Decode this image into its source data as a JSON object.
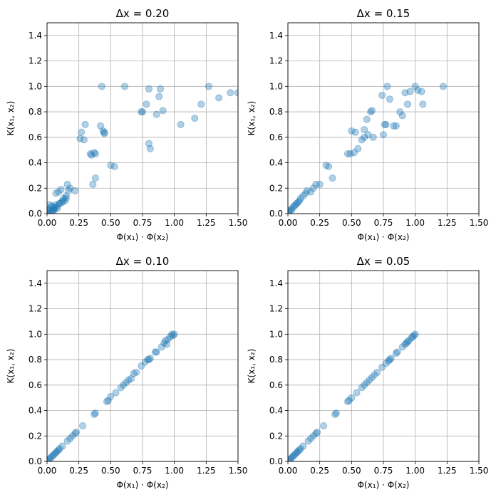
{
  "chart_data": [
    {
      "type": "scatter",
      "title": "Δx = 0.20",
      "xlabel": "Φ(x₁) · Φ(x₂)",
      "ylabel": "K(x₁, x₂)",
      "xlim": [
        0,
        1.5
      ],
      "ylim": [
        0,
        1.5
      ],
      "xticks": [
        "0.00",
        "0.25",
        "0.50",
        "0.75",
        "1.00",
        "1.25",
        "1.50"
      ],
      "yticks": [
        "0.0",
        "0.2",
        "0.4",
        "0.6",
        "0.8",
        "1.0",
        "1.2",
        "1.4"
      ],
      "grid": true,
      "color": "#1f77b4",
      "x": [
        0.0,
        0.01,
        0.02,
        0.03,
        0.04,
        0.05,
        0.06,
        0.07,
        0.08,
        0.1,
        0.12,
        0.14,
        0.02,
        0.04,
        0.06,
        0.08,
        0.1,
        0.12,
        0.15,
        0.17,
        0.18,
        0.16,
        0.22,
        0.09,
        0.11,
        0.07,
        0.13,
        0.03,
        0.05,
        0.15,
        0.26,
        0.27,
        0.3,
        0.29,
        0.34,
        0.37,
        0.38,
        0.38,
        0.36,
        0.35,
        0.42,
        0.44,
        0.45,
        0.45,
        0.5,
        0.53,
        0.43,
        0.61,
        0.74,
        0.75,
        0.8,
        0.8,
        0.81,
        0.86,
        0.88,
        0.89,
        0.91,
        0.78,
        1.05,
        1.16,
        1.21,
        1.27,
        1.35,
        1.44,
        1.5
      ],
      "y": [
        0.01,
        0.02,
        0.03,
        0.05,
        0.06,
        0.03,
        0.05,
        0.07,
        0.04,
        0.08,
        0.09,
        0.1,
        0.07,
        0.02,
        0.04,
        0.06,
        0.08,
        0.1,
        0.12,
        0.18,
        0.2,
        0.23,
        0.18,
        0.17,
        0.19,
        0.16,
        0.12,
        0.01,
        0.02,
        0.14,
        0.59,
        0.64,
        0.7,
        0.58,
        0.47,
        0.48,
        0.47,
        0.28,
        0.23,
        0.46,
        0.69,
        0.65,
        0.64,
        0.63,
        0.38,
        0.37,
        1.0,
        1.0,
        0.8,
        0.8,
        0.98,
        0.55,
        0.51,
        0.78,
        0.92,
        0.98,
        0.81,
        0.86,
        0.7,
        0.75,
        0.86,
        1.0,
        0.91,
        0.95,
        0.95
      ]
    },
    {
      "type": "scatter",
      "title": "Δx = 0.15",
      "xlabel": "Φ(x₁) · Φ(x₂)",
      "ylabel": "K(x₁, x₂)",
      "xlim": [
        0,
        1.5
      ],
      "ylim": [
        0,
        1.5
      ],
      "xticks": [
        "0.00",
        "0.25",
        "0.50",
        "0.75",
        "1.00",
        "1.25",
        "1.50"
      ],
      "yticks": [
        "0.0",
        "0.2",
        "0.4",
        "0.6",
        "0.8",
        "1.0",
        "1.2",
        "1.4"
      ],
      "grid": true,
      "color": "#1f77b4",
      "x": [
        0.0,
        0.01,
        0.02,
        0.03,
        0.04,
        0.05,
        0.06,
        0.07,
        0.08,
        0.09,
        0.1,
        0.12,
        0.14,
        0.15,
        0.18,
        0.2,
        0.22,
        0.25,
        0.3,
        0.32,
        0.35,
        0.47,
        0.49,
        0.5,
        0.52,
        0.53,
        0.55,
        0.58,
        0.6,
        0.62,
        0.63,
        0.65,
        0.66,
        0.67,
        0.74,
        0.75,
        0.77,
        0.78,
        0.8,
        0.83,
        0.85,
        0.88,
        0.9,
        0.92,
        0.94,
        0.96,
        1.0,
        1.02,
        1.05,
        1.06,
        1.22,
        0.76,
        0.6
      ],
      "y": [
        0.01,
        0.02,
        0.03,
        0.03,
        0.05,
        0.06,
        0.07,
        0.08,
        0.09,
        0.1,
        0.12,
        0.14,
        0.16,
        0.18,
        0.17,
        0.2,
        0.23,
        0.23,
        0.38,
        0.37,
        0.28,
        0.47,
        0.47,
        0.65,
        0.48,
        0.64,
        0.51,
        0.58,
        0.66,
        0.74,
        0.62,
        0.8,
        0.81,
        0.6,
        0.93,
        0.62,
        0.7,
        1.0,
        0.9,
        0.69,
        0.69,
        0.8,
        0.77,
        0.95,
        0.86,
        0.96,
        1.0,
        0.97,
        0.96,
        0.86,
        1.0,
        0.7,
        0.6
      ]
    },
    {
      "type": "scatter",
      "title": "Δx = 0.10",
      "xlabel": "Φ(x₁) · Φ(x₂)",
      "ylabel": "K(x₁, x₂)",
      "xlim": [
        0,
        1.5
      ],
      "ylim": [
        0,
        1.5
      ],
      "xticks": [
        "0.00",
        "0.25",
        "0.50",
        "0.75",
        "1.00",
        "1.25",
        "1.50"
      ],
      "yticks": [
        "0.0",
        "0.2",
        "0.4",
        "0.6",
        "0.8",
        "1.0",
        "1.2",
        "1.4"
      ],
      "grid": true,
      "color": "#1f77b4",
      "x": [
        0.0,
        0.01,
        0.02,
        0.03,
        0.04,
        0.05,
        0.06,
        0.07,
        0.08,
        0.09,
        0.1,
        0.12,
        0.16,
        0.18,
        0.2,
        0.22,
        0.23,
        0.28,
        0.37,
        0.38,
        0.47,
        0.48,
        0.5,
        0.54,
        0.58,
        0.6,
        0.62,
        0.64,
        0.66,
        0.68,
        0.7,
        0.74,
        0.77,
        0.79,
        0.8,
        0.81,
        0.85,
        0.86,
        0.9,
        0.92,
        0.93,
        0.95,
        0.97,
        0.98,
        1.0,
        0.99,
        0.94
      ],
      "y": [
        0.0,
        0.01,
        0.02,
        0.03,
        0.04,
        0.05,
        0.06,
        0.07,
        0.08,
        0.09,
        0.1,
        0.12,
        0.16,
        0.18,
        0.2,
        0.22,
        0.23,
        0.28,
        0.37,
        0.38,
        0.47,
        0.48,
        0.51,
        0.54,
        0.58,
        0.6,
        0.62,
        0.64,
        0.65,
        0.69,
        0.7,
        0.75,
        0.78,
        0.8,
        0.8,
        0.81,
        0.86,
        0.86,
        0.9,
        0.93,
        0.95,
        0.96,
        0.98,
        1.0,
        1.0,
        0.99,
        0.92
      ]
    },
    {
      "type": "scatter",
      "title": "Δx = 0.05",
      "xlabel": "Φ(x₁) · Φ(x₂)",
      "ylabel": "K(x₁, x₂)",
      "xlim": [
        0,
        1.5
      ],
      "ylim": [
        0,
        1.5
      ],
      "xticks": [
        "0.00",
        "0.25",
        "0.50",
        "0.75",
        "1.00",
        "1.25",
        "1.50"
      ],
      "yticks": [
        "0.0",
        "0.2",
        "0.4",
        "0.6",
        "0.8",
        "1.0",
        "1.2",
        "1.4"
      ],
      "grid": true,
      "color": "#1f77b4",
      "x": [
        0.0,
        0.01,
        0.02,
        0.03,
        0.04,
        0.05,
        0.06,
        0.07,
        0.08,
        0.09,
        0.1,
        0.12,
        0.16,
        0.18,
        0.2,
        0.22,
        0.23,
        0.28,
        0.37,
        0.38,
        0.47,
        0.48,
        0.5,
        0.54,
        0.58,
        0.6,
        0.62,
        0.64,
        0.66,
        0.68,
        0.7,
        0.74,
        0.77,
        0.79,
        0.8,
        0.81,
        0.85,
        0.86,
        0.9,
        0.92,
        0.93,
        0.95,
        0.97,
        0.98,
        1.0,
        0.99,
        0.94
      ],
      "y": [
        0.0,
        0.01,
        0.02,
        0.03,
        0.04,
        0.05,
        0.06,
        0.07,
        0.08,
        0.09,
        0.1,
        0.12,
        0.16,
        0.18,
        0.2,
        0.22,
        0.23,
        0.28,
        0.37,
        0.38,
        0.47,
        0.48,
        0.5,
        0.54,
        0.58,
        0.6,
        0.62,
        0.64,
        0.66,
        0.68,
        0.7,
        0.74,
        0.77,
        0.79,
        0.8,
        0.81,
        0.85,
        0.86,
        0.9,
        0.92,
        0.93,
        0.95,
        0.97,
        0.98,
        1.0,
        0.99,
        0.94
      ]
    }
  ]
}
